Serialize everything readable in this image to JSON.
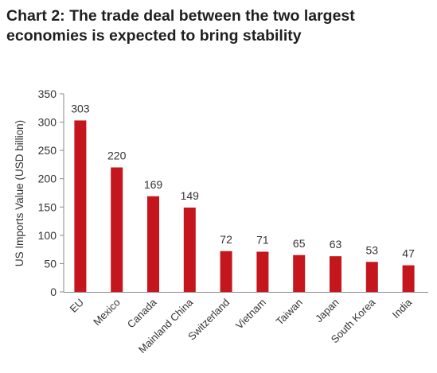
{
  "chart_data": {
    "type": "bar",
    "title": "Chart 2: The trade deal between the two largest economies is expected to bring stability",
    "xlabel": "",
    "ylabel": "US Imports Value (USD billion)",
    "ylim": [
      0,
      350
    ],
    "yticks": [
      0,
      50,
      100,
      150,
      200,
      250,
      300,
      350
    ],
    "categories": [
      "EU",
      "Mexico",
      "Canada",
      "Mainland China",
      "Switzerland",
      "Vietnam",
      "Taiwan",
      "Japan",
      "South Korea",
      "India"
    ],
    "values": [
      303,
      220,
      169,
      149,
      72,
      71,
      65,
      63,
      53,
      47
    ],
    "data_labels": true,
    "grid": false,
    "legend": "none",
    "bar_color": "#c4161c"
  }
}
